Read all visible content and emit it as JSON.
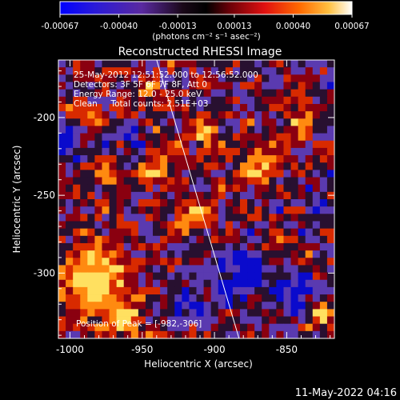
{
  "colorbar": {
    "tick_labels": [
      "-0.00067",
      "-0.00040",
      "-0.00013",
      "0.00013",
      "0.00040",
      "0.00067"
    ],
    "tick_values": [
      -0.00067,
      -0.0004,
      -0.00013,
      0.00013,
      0.0004,
      0.00067
    ],
    "range": [
      -0.00067,
      0.00067
    ],
    "units_label": "(photons cm⁻² s⁻¹ asec⁻²)"
  },
  "title": "Reconstructed RHESSI Image",
  "info_lines": [
    "25-May-2012 12:51:52.000 to 12:56:52.000",
    "Detectors: 3F 5F 6F 7F 8F, Att 0",
    "Energy Range: 12.0 - 25.0 keV",
    "Clean     Total counts: 2.51E+03"
  ],
  "peak_label": "Position of Peak = [-982,-306]",
  "footer_date": "11-May-2022 04:16",
  "chart_data": {
    "type": "heatmap",
    "xlabel": "Heliocentric X (arcsec)",
    "ylabel": "Heliocentric Y (arcsec)",
    "xlim": [
      -1008,
      -817
    ],
    "ylim": [
      -342,
      -163
    ],
    "x_ticks": [
      -1000,
      -950,
      -900,
      -850
    ],
    "x_tick_labels": [
      "-1000",
      "-950",
      "-900",
      "-850"
    ],
    "y_ticks": [
      -300,
      -250,
      -200
    ],
    "y_tick_labels": [
      "-300",
      "-250",
      "-200"
    ],
    "colormap": [
      "#0a0acc",
      "#5a3ab0",
      "#281030",
      "#8a0010",
      "#d82a00",
      "#ff8a10",
      "#ffe060"
    ],
    "limb_line": {
      "x": [
        -940,
        -883
      ],
      "y": [
        -163,
        -342
      ]
    },
    "peak": {
      "x": -982,
      "y": -306
    },
    "hot_regions": [
      {
        "x": -985,
        "y": -305,
        "r": 22,
        "amp": 1.0
      },
      {
        "x": -965,
        "y": -330,
        "r": 14,
        "amp": 0.7
      },
      {
        "x": -940,
        "y": -230,
        "r": 14,
        "amp": 0.55
      },
      {
        "x": -905,
        "y": -210,
        "r": 12,
        "amp": 0.55
      },
      {
        "x": -915,
        "y": -265,
        "r": 12,
        "amp": 0.6
      },
      {
        "x": -975,
        "y": -240,
        "r": 10,
        "amp": 0.45
      },
      {
        "x": -870,
        "y": -230,
        "r": 14,
        "amp": 0.5
      },
      {
        "x": -840,
        "y": -200,
        "r": 12,
        "amp": 0.45
      },
      {
        "x": -830,
        "y": -330,
        "r": 10,
        "amp": 0.5
      },
      {
        "x": -990,
        "y": -195,
        "r": 10,
        "amp": 0.4
      },
      {
        "x": -945,
        "y": -185,
        "r": 10,
        "amp": 0.45
      },
      {
        "x": -860,
        "y": -280,
        "r": 10,
        "amp": 0.35
      }
    ],
    "cold_regions": [
      {
        "x": -880,
        "y": -300,
        "r": 18,
        "amp": 0.8
      },
      {
        "x": -845,
        "y": -315,
        "r": 12,
        "amp": 0.7
      },
      {
        "x": -1000,
        "y": -215,
        "r": 10,
        "amp": 0.6
      },
      {
        "x": -955,
        "y": -215,
        "r": 8,
        "amp": 0.5
      },
      {
        "x": -920,
        "y": -320,
        "r": 10,
        "amp": 0.55
      },
      {
        "x": -830,
        "y": -255,
        "r": 8,
        "amp": 0.5
      }
    ]
  }
}
